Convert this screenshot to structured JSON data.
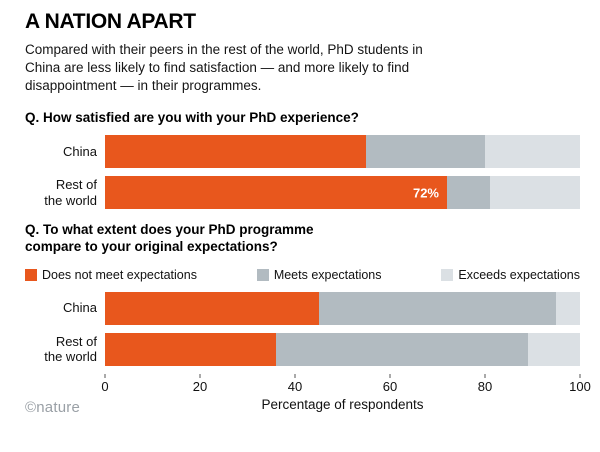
{
  "title": "A NATION APART",
  "subtitle": "Compared with their peers in the rest of the world, PhD students in China are less likely to find satisfaction — and more likely to find disappointment — in their programmes.",
  "colors": {
    "orange": "#E8571D",
    "mid_gray": "#B2BBC1",
    "light_gray": "#DBE0E4"
  },
  "chart_data": [
    {
      "type": "bar",
      "stacked": true,
      "orientation": "horizontal",
      "title": "Q. How satisfied are you with your PhD experience?",
      "categories": [
        "China",
        "Rest of\nthe world"
      ],
      "series": [
        {
          "color": "#E8571D",
          "values": [
            55,
            72
          ]
        },
        {
          "color": "#B2BBC1",
          "values": [
            25,
            9
          ]
        },
        {
          "color": "#DBE0E4",
          "values": [
            20,
            19
          ]
        }
      ],
      "bar_labels": [
        "",
        "72%"
      ],
      "xlim": [
        0,
        100
      ]
    },
    {
      "type": "bar",
      "stacked": true,
      "orientation": "horizontal",
      "title": "Q. To what extent does your PhD programme compare to your original expectations?",
      "categories": [
        "China",
        "Rest of\nthe world"
      ],
      "legend": [
        "Does not meet expectations",
        "Meets expectations",
        "Exceeds expectations"
      ],
      "series": [
        {
          "name": "Does not meet expectations",
          "color": "#E8571D",
          "values": [
            45,
            36
          ]
        },
        {
          "name": "Meets expectations",
          "color": "#B2BBC1",
          "values": [
            50,
            53
          ]
        },
        {
          "name": "Exceeds expectations",
          "color": "#DBE0E4",
          "values": [
            5,
            11
          ]
        }
      ],
      "bar_labels": [
        "",
        ""
      ],
      "xlim": [
        0,
        100
      ]
    }
  ],
  "axis": {
    "ticks": [
      0,
      20,
      40,
      60,
      80,
      100
    ],
    "xlabel": "Percentage of respondents"
  },
  "footer": {
    "logo": "©nature"
  }
}
